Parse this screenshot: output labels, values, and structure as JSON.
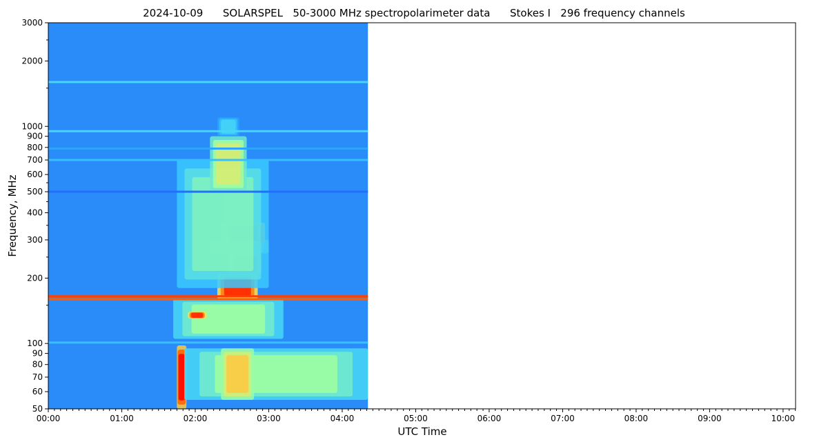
{
  "chart_data": {
    "type": "heatmap",
    "title": "2024-10-09      SOLARSPEL   50-3000 MHz spectropolarimeter data      Stokes I   296 frequency channels",
    "xlabel": "UTC Time",
    "ylabel": "Frequency, MHz",
    "x_range_hours": [
      0,
      10.17
    ],
    "x_ticks": [
      {
        "value": 0,
        "label": "00:00"
      },
      {
        "value": 1,
        "label": "01:00"
      },
      {
        "value": 2,
        "label": "02:00"
      },
      {
        "value": 3,
        "label": "03:00"
      },
      {
        "value": 4,
        "label": "04:00"
      },
      {
        "value": 5,
        "label": "05:00"
      },
      {
        "value": 6,
        "label": "06:00"
      },
      {
        "value": 7,
        "label": "07:00"
      },
      {
        "value": 8,
        "label": "08:00"
      },
      {
        "value": 9,
        "label": "09:00"
      },
      {
        "value": 10,
        "label": "10:00"
      }
    ],
    "y_scale": "log",
    "y_range_mhz": [
      50,
      3000
    ],
    "y_ticks": [
      {
        "value": 50,
        "label": "50"
      },
      {
        "value": 60,
        "label": "60"
      },
      {
        "value": 70,
        "label": "70"
      },
      {
        "value": 80,
        "label": "80"
      },
      {
        "value": 90,
        "label": "90"
      },
      {
        "value": 100,
        "label": "100"
      },
      {
        "value": 200,
        "label": "200"
      },
      {
        "value": 300,
        "label": "300"
      },
      {
        "value": 400,
        "label": "400"
      },
      {
        "value": 500,
        "label": "500"
      },
      {
        "value": 600,
        "label": "600"
      },
      {
        "value": 700,
        "label": "700"
      },
      {
        "value": 800,
        "label": "800"
      },
      {
        "value": 900,
        "label": "900"
      },
      {
        "value": 1000,
        "label": "1000"
      },
      {
        "value": 2000,
        "label": "2000"
      },
      {
        "value": 3000,
        "label": "3000"
      }
    ],
    "y_minor_ticks": [
      150,
      250,
      350,
      450,
      550,
      1500,
      2500
    ],
    "data_extent_hours": [
      0,
      4.35
    ],
    "colormap": [
      "#5a14e6",
      "#1e78ff",
      "#3cd2ff",
      "#a0ffa0",
      "#ffe050",
      "#ff6a00",
      "#ff0000"
    ],
    "background_color": "#2a8cf8",
    "burst_regions": [
      {
        "t0": 1.75,
        "t1": 1.88,
        "f0": 50,
        "f1": 98,
        "level": 1.0
      },
      {
        "t0": 1.85,
        "t1": 4.35,
        "f0": 55,
        "f1": 95,
        "level": 0.5
      },
      {
        "t0": 2.35,
        "t1": 2.8,
        "f0": 55,
        "f1": 95,
        "level": 0.7
      },
      {
        "t0": 1.7,
        "t1": 3.2,
        "f0": 105,
        "f1": 160,
        "level": 0.5
      },
      {
        "t0": 1.9,
        "t1": 2.15,
        "f0": 130,
        "f1": 140,
        "level": 0.95
      },
      {
        "t0": 2.3,
        "t1": 2.85,
        "f0": 160,
        "f1": 210,
        "level": 0.95
      },
      {
        "t0": 2.45,
        "t1": 2.9,
        "f0": 210,
        "f1": 260,
        "level": 1.0
      },
      {
        "t0": 2.2,
        "t1": 3.0,
        "f0": 260,
        "f1": 300,
        "level": 0.6
      },
      {
        "t0": 2.35,
        "t1": 2.95,
        "f0": 290,
        "f1": 360,
        "level": 0.95
      },
      {
        "t0": 2.4,
        "t1": 2.8,
        "f0": 360,
        "f1": 500,
        "level": 0.9
      },
      {
        "t0": 1.75,
        "t1": 3.0,
        "f0": 180,
        "f1": 700,
        "level": 0.45
      },
      {
        "t0": 2.2,
        "t1": 2.7,
        "f0": 500,
        "f1": 900,
        "level": 0.6
      },
      {
        "t0": 2.3,
        "t1": 2.6,
        "f0": 900,
        "f1": 1100,
        "level": 0.35
      }
    ],
    "horizontal_lines": [
      {
        "f": 1600,
        "level": 0.35
      },
      {
        "f": 950,
        "level": 0.35
      },
      {
        "f": 790,
        "level": 0.25
      },
      {
        "f": 700,
        "level": 0.3
      },
      {
        "f": 500,
        "level": 0.15
      },
      {
        "f": 165,
        "level": 0.9
      },
      {
        "f": 160,
        "level": 0.85
      },
      {
        "f": 101,
        "level": 0.3
      }
    ]
  }
}
